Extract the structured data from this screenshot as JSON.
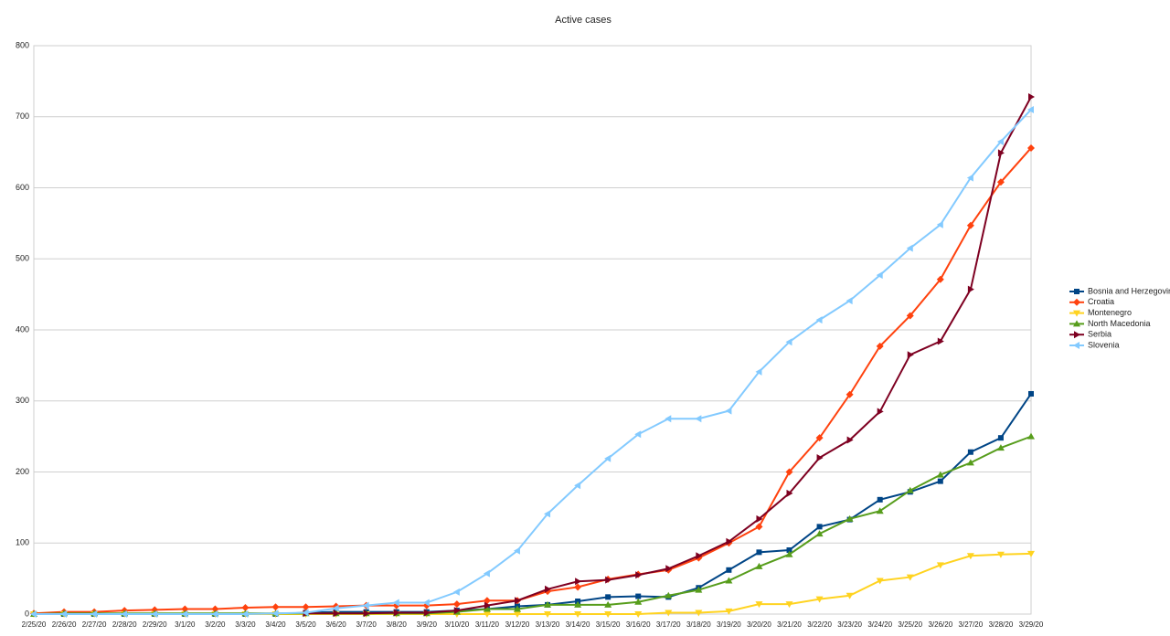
{
  "chart_data": {
    "type": "line",
    "title": "Active cases",
    "x": [
      "2/25/20",
      "2/26/20",
      "2/27/20",
      "2/28/20",
      "2/29/20",
      "3/1/20",
      "3/2/20",
      "3/3/20",
      "3/4/20",
      "3/5/20",
      "3/6/20",
      "3/7/20",
      "3/8/20",
      "3/9/20",
      "3/10/20",
      "3/11/20",
      "3/12/20",
      "3/13/20",
      "3/14/20",
      "3/15/20",
      "3/16/20",
      "3/17/20",
      "3/18/20",
      "3/19/20",
      "3/20/20",
      "3/21/20",
      "3/22/20",
      "3/23/20",
      "3/24/20",
      "3/25/20",
      "3/26/20",
      "3/27/20",
      "3/28/20",
      "3/29/20"
    ],
    "ylim": [
      0,
      800
    ],
    "yticks": [
      0,
      100,
      200,
      300,
      400,
      500,
      600,
      700,
      800
    ],
    "grid": true,
    "series": [
      {
        "name": "Bosnia and Herzegovina",
        "color": "#004586",
        "marker": "square",
        "values": [
          0,
          0,
          0,
          0,
          0,
          0,
          0,
          0,
          0,
          2,
          3,
          3,
          3,
          3,
          5,
          7,
          11,
          13,
          18,
          24,
          25,
          24,
          37,
          62,
          87,
          90,
          123,
          133,
          161,
          172,
          187,
          228,
          248,
          310
        ]
      },
      {
        "name": "Croatia",
        "color": "#ff420e",
        "marker": "diamond",
        "values": [
          1,
          3,
          3,
          5,
          6,
          7,
          7,
          9,
          10,
          10,
          11,
          12,
          12,
          12,
          14,
          19,
          19,
          32,
          38,
          49,
          56,
          62,
          79,
          100,
          123,
          200,
          248,
          309,
          377,
          420,
          471,
          547,
          608,
          656
        ]
      },
      {
        "name": "Montenegro",
        "color": "#ffd320",
        "marker": "triangle-down",
        "values": [
          0,
          0,
          0,
          0,
          0,
          0,
          0,
          0,
          0,
          0,
          0,
          0,
          0,
          0,
          0,
          0,
          0,
          0,
          0,
          0,
          0,
          2,
          2,
          4,
          14,
          14,
          21,
          26,
          47,
          52,
          69,
          82,
          84,
          85
        ]
      },
      {
        "name": "North Macedonia",
        "color": "#579d1c",
        "marker": "triangle-up",
        "values": [
          0,
          1,
          1,
          1,
          1,
          1,
          1,
          1,
          1,
          1,
          1,
          1,
          1,
          1,
          3,
          7,
          7,
          13,
          13,
          13,
          17,
          26,
          34,
          47,
          67,
          84,
          113,
          134,
          145,
          174,
          196,
          213,
          234,
          250
        ]
      },
      {
        "name": "Serbia",
        "color": "#7e0021",
        "marker": "triangle-right",
        "values": [
          null,
          null,
          null,
          null,
          null,
          null,
          null,
          null,
          null,
          1,
          1,
          1,
          2,
          2,
          5,
          12,
          19,
          35,
          46,
          48,
          55,
          64,
          82,
          102,
          134,
          170,
          220,
          245,
          285,
          365,
          384,
          457,
          649,
          728
        ]
      },
      {
        "name": "Slovenia",
        "color": "#83caff",
        "marker": "triangle-left",
        "values": [
          0,
          0,
          0,
          0,
          0,
          0,
          0,
          0,
          1,
          2,
          8,
          12,
          16,
          16,
          31,
          57,
          89,
          141,
          181,
          219,
          253,
          275,
          275,
          286,
          341,
          383,
          414,
          441,
          477,
          515,
          548,
          614,
          665,
          710
        ]
      }
    ]
  }
}
